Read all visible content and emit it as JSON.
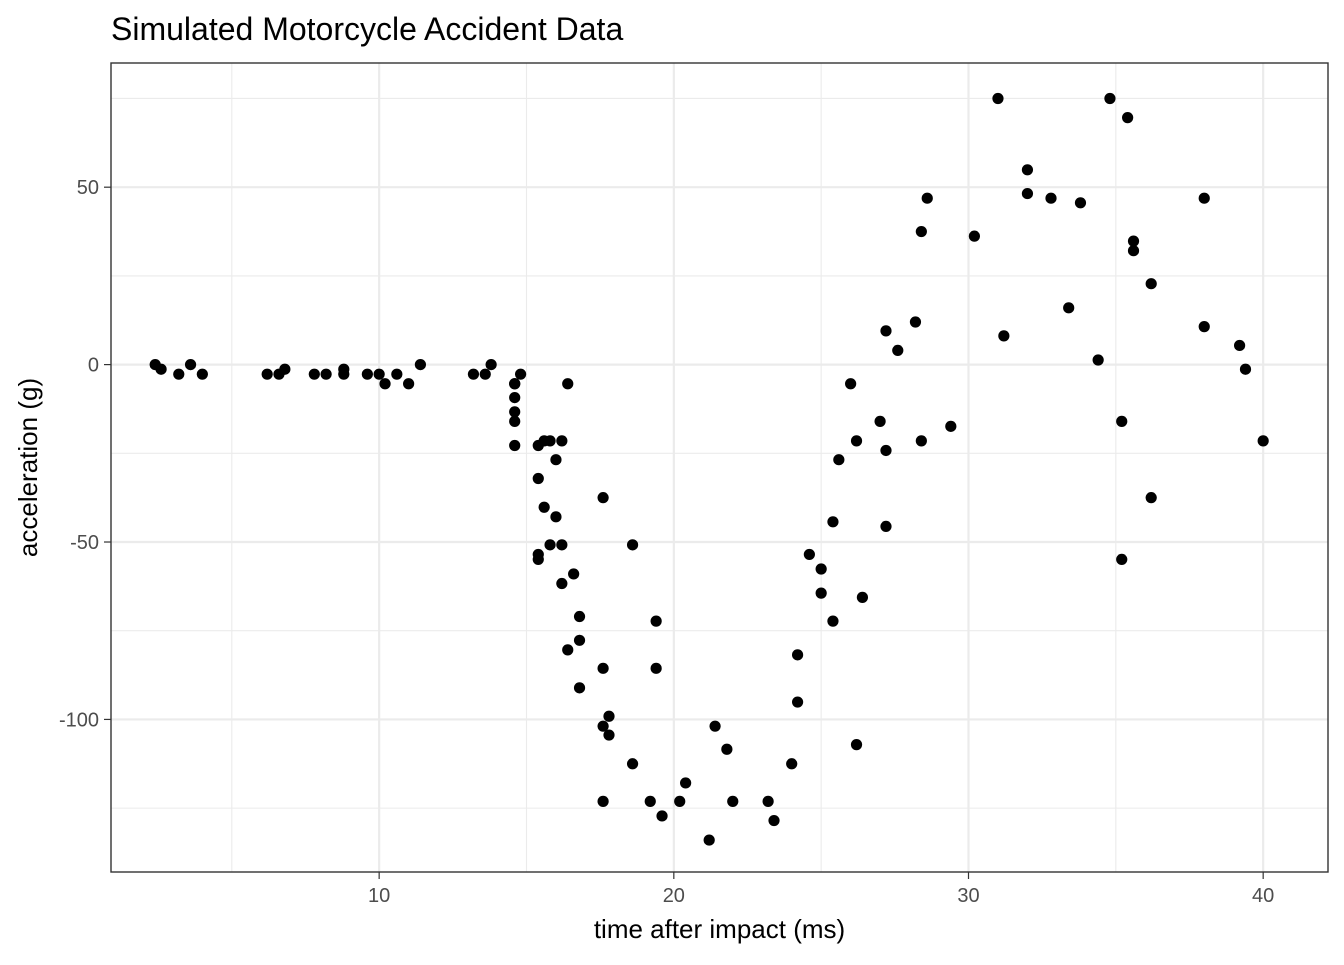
{
  "chart_data": {
    "type": "scatter",
    "title": "Simulated Motorcycle Accident Data",
    "xlabel": "time after impact (ms)",
    "ylabel": "acceleration (g)",
    "xlim": [
      0.9,
      42.2
    ],
    "ylim": [
      -143,
      85
    ],
    "x_ticks": [
      10,
      20,
      30,
      40
    ],
    "x_tick_labels": [
      "10",
      "20",
      "30",
      "40"
    ],
    "x_minor_ticks": [
      5,
      15,
      25,
      35
    ],
    "y_ticks": [
      -100,
      -50,
      0,
      50
    ],
    "y_tick_labels": [
      "-100",
      "-50",
      "0",
      "50"
    ],
    "y_minor_ticks": [
      -125,
      -75,
      -25,
      25,
      75
    ],
    "grid": true,
    "legend": "none",
    "point_color": "#000000",
    "points": [
      [
        2.4,
        0.0
      ],
      [
        2.6,
        -1.3
      ],
      [
        3.2,
        -2.7
      ],
      [
        3.6,
        0.0
      ],
      [
        4.0,
        -2.7
      ],
      [
        6.2,
        -2.7
      ],
      [
        6.6,
        -2.7
      ],
      [
        6.8,
        -1.3
      ],
      [
        7.8,
        -2.7
      ],
      [
        8.2,
        -2.7
      ],
      [
        8.8,
        -1.3
      ],
      [
        8.8,
        -2.7
      ],
      [
        9.6,
        -2.7
      ],
      [
        10.0,
        -2.7
      ],
      [
        10.2,
        -5.4
      ],
      [
        10.6,
        -2.7
      ],
      [
        11.0,
        -5.4
      ],
      [
        11.4,
        0.0
      ],
      [
        13.2,
        -2.7
      ],
      [
        13.6,
        -2.7
      ],
      [
        13.8,
        0.0
      ],
      [
        14.6,
        -13.3
      ],
      [
        14.6,
        -5.4
      ],
      [
        14.6,
        -5.4
      ],
      [
        14.6,
        -9.3
      ],
      [
        14.6,
        -16.0
      ],
      [
        14.6,
        -22.8
      ],
      [
        14.8,
        -2.7
      ],
      [
        15.4,
        -22.8
      ],
      [
        15.4,
        -32.1
      ],
      [
        15.4,
        -53.5
      ],
      [
        15.4,
        -54.9
      ],
      [
        15.6,
        -40.2
      ],
      [
        15.6,
        -21.5
      ],
      [
        15.8,
        -21.5
      ],
      [
        15.8,
        -50.8
      ],
      [
        16.0,
        -42.9
      ],
      [
        16.0,
        -26.8
      ],
      [
        16.2,
        -21.5
      ],
      [
        16.2,
        -50.8
      ],
      [
        16.2,
        -61.7
      ],
      [
        16.4,
        -5.4
      ],
      [
        16.4,
        -80.4
      ],
      [
        16.6,
        -59.0
      ],
      [
        16.8,
        -71.0
      ],
      [
        16.8,
        -91.1
      ],
      [
        16.8,
        -77.7
      ],
      [
        17.6,
        -37.5
      ],
      [
        17.6,
        -85.6
      ],
      [
        17.6,
        -123.1
      ],
      [
        17.6,
        -101.9
      ],
      [
        17.8,
        -99.1
      ],
      [
        17.8,
        -104.4
      ],
      [
        18.6,
        -112.5
      ],
      [
        18.6,
        -50.8
      ],
      [
        19.2,
        -123.1
      ],
      [
        19.4,
        -85.6
      ],
      [
        19.4,
        -72.3
      ],
      [
        19.6,
        -127.2
      ],
      [
        20.2,
        -123.1
      ],
      [
        20.4,
        -117.9
      ],
      [
        21.2,
        -134.0
      ],
      [
        21.4,
        -101.9
      ],
      [
        21.8,
        -108.4
      ],
      [
        22.0,
        -123.1
      ],
      [
        23.2,
        -123.1
      ],
      [
        23.4,
        -128.5
      ],
      [
        24.0,
        -112.5
      ],
      [
        24.2,
        -95.1
      ],
      [
        24.2,
        -81.8
      ],
      [
        24.6,
        -53.5
      ],
      [
        25.0,
        -64.4
      ],
      [
        25.0,
        -57.6
      ],
      [
        25.4,
        -72.3
      ],
      [
        25.4,
        -44.3
      ],
      [
        25.6,
        -26.8
      ],
      [
        26.0,
        -5.4
      ],
      [
        26.2,
        -107.1
      ],
      [
        26.2,
        -21.5
      ],
      [
        26.4,
        -65.6
      ],
      [
        27.0,
        -16.0
      ],
      [
        27.2,
        -45.6
      ],
      [
        27.2,
        -24.2
      ],
      [
        27.2,
        9.5
      ],
      [
        27.6,
        4.0
      ],
      [
        28.2,
        12.0
      ],
      [
        28.4,
        -21.5
      ],
      [
        28.4,
        37.5
      ],
      [
        28.6,
        46.9
      ],
      [
        29.4,
        -17.4
      ],
      [
        30.2,
        36.2
      ],
      [
        31.0,
        75.0
      ],
      [
        31.2,
        8.1
      ],
      [
        32.0,
        54.9
      ],
      [
        32.0,
        48.2
      ],
      [
        32.8,
        46.9
      ],
      [
        33.4,
        16.0
      ],
      [
        33.8,
        45.6
      ],
      [
        34.4,
        1.3
      ],
      [
        34.8,
        75.0
      ],
      [
        35.2,
        -16.0
      ],
      [
        35.2,
        -54.9
      ],
      [
        35.4,
        69.6
      ],
      [
        35.6,
        34.8
      ],
      [
        35.6,
        32.1
      ],
      [
        36.2,
        22.8
      ],
      [
        36.2,
        -37.5
      ],
      [
        38.0,
        46.9
      ],
      [
        38.0,
        10.7
      ],
      [
        39.2,
        5.4
      ],
      [
        39.4,
        -1.3
      ],
      [
        40.0,
        -21.5
      ]
    ]
  }
}
